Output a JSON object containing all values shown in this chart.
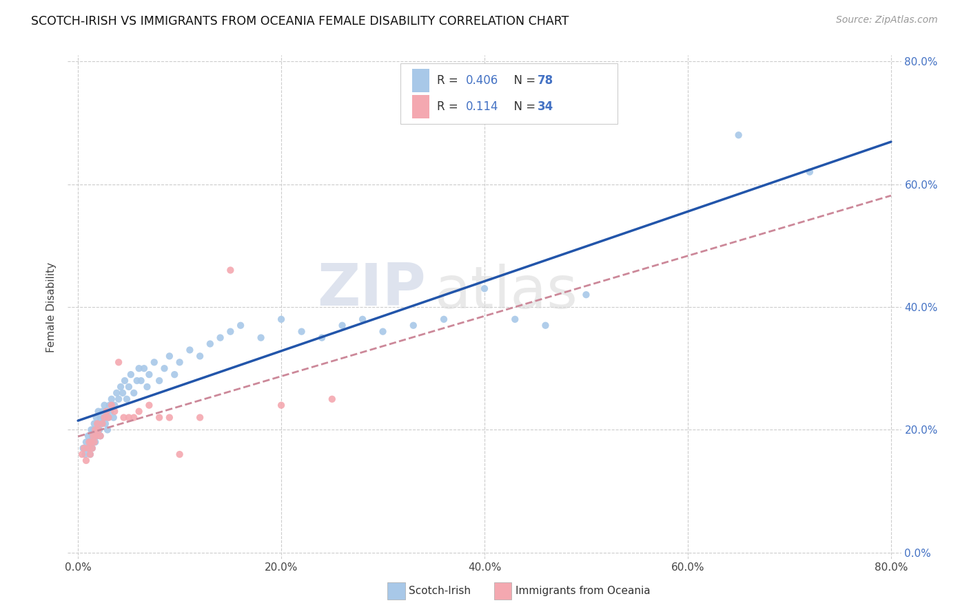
{
  "title": "SCOTCH-IRISH VS IMMIGRANTS FROM OCEANIA FEMALE DISABILITY CORRELATION CHART",
  "source": "Source: ZipAtlas.com",
  "xlabel_ticks": [
    "0.0%",
    "20.0%",
    "40.0%",
    "60.0%",
    "80.0%"
  ],
  "ylabel_ticks": [
    "0.0%",
    "20.0%",
    "40.0%",
    "60.0%",
    "80.0%"
  ],
  "xlabel_tick_vals": [
    0.0,
    0.2,
    0.4,
    0.6,
    0.8
  ],
  "ylabel_tick_vals": [
    0.0,
    0.2,
    0.4,
    0.6,
    0.8
  ],
  "ylabel": "Female Disability",
  "legend_label1": "Scotch-Irish",
  "legend_label2": "Immigrants from Oceania",
  "R1": 0.406,
  "N1": 78,
  "R2": 0.114,
  "N2": 34,
  "color1": "#a8c8e8",
  "color2": "#f4a8b0",
  "line1_color": "#2255aa",
  "line2_color": "#cc8899",
  "watermark_zip": "ZIP",
  "watermark_atlas": "atlas",
  "background_color": "#ffffff",
  "scotch_irish_x": [
    0.005,
    0.007,
    0.008,
    0.01,
    0.01,
    0.012,
    0.012,
    0.013,
    0.014,
    0.014,
    0.015,
    0.015,
    0.016,
    0.016,
    0.017,
    0.018,
    0.018,
    0.019,
    0.02,
    0.02,
    0.021,
    0.022,
    0.022,
    0.023,
    0.024,
    0.025,
    0.026,
    0.027,
    0.028,
    0.029,
    0.03,
    0.031,
    0.032,
    0.033,
    0.035,
    0.036,
    0.038,
    0.04,
    0.042,
    0.044,
    0.046,
    0.048,
    0.05,
    0.052,
    0.055,
    0.058,
    0.06,
    0.062,
    0.065,
    0.068,
    0.07,
    0.075,
    0.08,
    0.085,
    0.09,
    0.095,
    0.1,
    0.11,
    0.12,
    0.13,
    0.14,
    0.15,
    0.16,
    0.18,
    0.2,
    0.22,
    0.24,
    0.26,
    0.28,
    0.3,
    0.33,
    0.36,
    0.4,
    0.43,
    0.46,
    0.5,
    0.65,
    0.72
  ],
  "scotch_irish_y": [
    0.17,
    0.16,
    0.18,
    0.17,
    0.19,
    0.16,
    0.18,
    0.2,
    0.17,
    0.19,
    0.18,
    0.2,
    0.19,
    0.21,
    0.18,
    0.2,
    0.22,
    0.19,
    0.21,
    0.23,
    0.2,
    0.22,
    0.19,
    0.21,
    0.23,
    0.22,
    0.24,
    0.21,
    0.23,
    0.2,
    0.22,
    0.24,
    0.23,
    0.25,
    0.22,
    0.24,
    0.26,
    0.25,
    0.27,
    0.26,
    0.28,
    0.25,
    0.27,
    0.29,
    0.26,
    0.28,
    0.3,
    0.28,
    0.3,
    0.27,
    0.29,
    0.31,
    0.28,
    0.3,
    0.32,
    0.29,
    0.31,
    0.33,
    0.32,
    0.34,
    0.35,
    0.36,
    0.37,
    0.35,
    0.38,
    0.36,
    0.35,
    0.37,
    0.38,
    0.36,
    0.37,
    0.38,
    0.43,
    0.38,
    0.37,
    0.42,
    0.68,
    0.62
  ],
  "oceania_x": [
    0.004,
    0.006,
    0.008,
    0.01,
    0.011,
    0.012,
    0.013,
    0.014,
    0.015,
    0.016,
    0.017,
    0.018,
    0.019,
    0.02,
    0.022,
    0.024,
    0.026,
    0.028,
    0.03,
    0.033,
    0.036,
    0.04,
    0.045,
    0.05,
    0.055,
    0.06,
    0.07,
    0.08,
    0.09,
    0.1,
    0.12,
    0.15,
    0.2,
    0.25
  ],
  "oceania_y": [
    0.16,
    0.17,
    0.15,
    0.17,
    0.18,
    0.16,
    0.18,
    0.17,
    0.19,
    0.18,
    0.2,
    0.19,
    0.21,
    0.2,
    0.19,
    0.21,
    0.22,
    0.23,
    0.22,
    0.24,
    0.23,
    0.31,
    0.22,
    0.22,
    0.22,
    0.23,
    0.24,
    0.22,
    0.22,
    0.16,
    0.22,
    0.46,
    0.24,
    0.25
  ]
}
